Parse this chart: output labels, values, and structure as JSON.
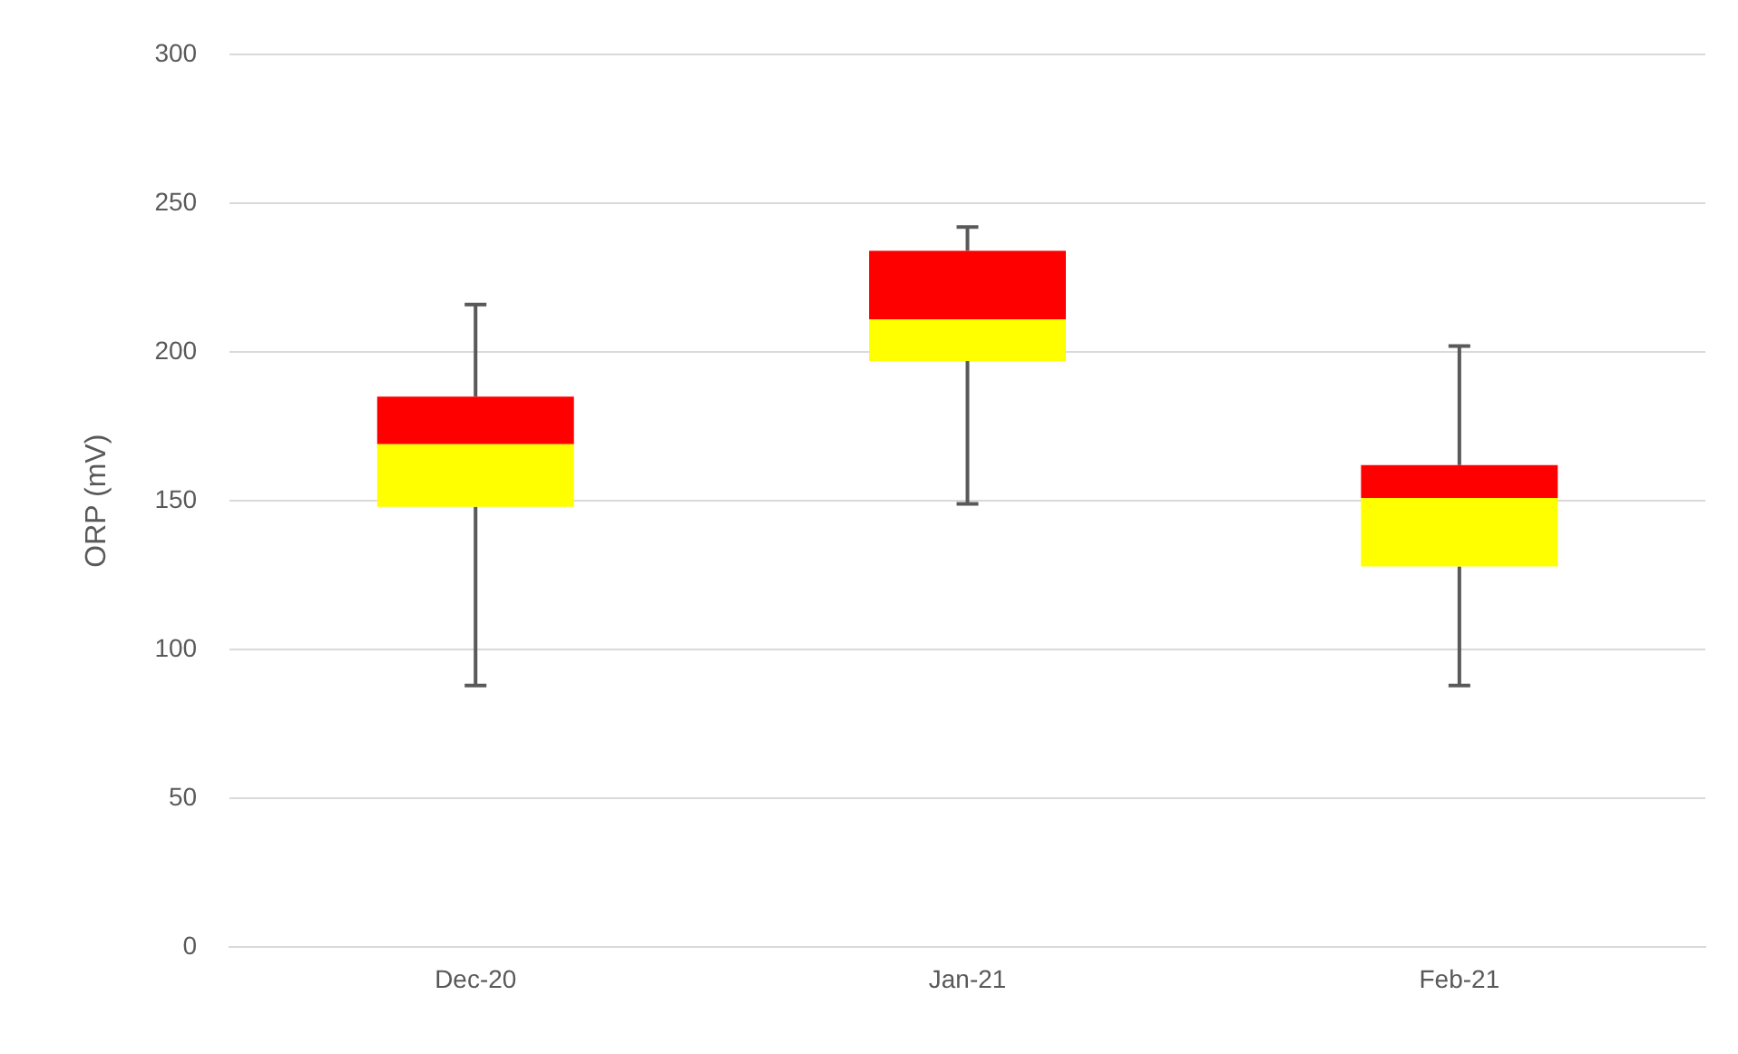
{
  "chart_data": {
    "type": "box",
    "ylabel": "ORP (mV)",
    "categories": [
      "Dec-20",
      "Jan-21",
      "Feb-21"
    ],
    "boxes": [
      {
        "low": 88,
        "q1": 148,
        "median": 169,
        "q3": 185,
        "high": 216
      },
      {
        "low": 149,
        "q1": 197,
        "median": 211,
        "q3": 234,
        "high": 242
      },
      {
        "low": 88,
        "q1": 128,
        "median": 151,
        "q3": 162,
        "high": 202
      }
    ],
    "colors": [
      [
        "#ffff00",
        "#ff0000"
      ],
      [
        "#ffff00",
        "#ff0000"
      ],
      [
        "#ffff00",
        "#ff0000"
      ]
    ],
    "ylim": [
      0,
      300
    ],
    "yticks": [
      0,
      50,
      100,
      150,
      200,
      250,
      300
    ],
    "grid": "y",
    "legend": false
  }
}
